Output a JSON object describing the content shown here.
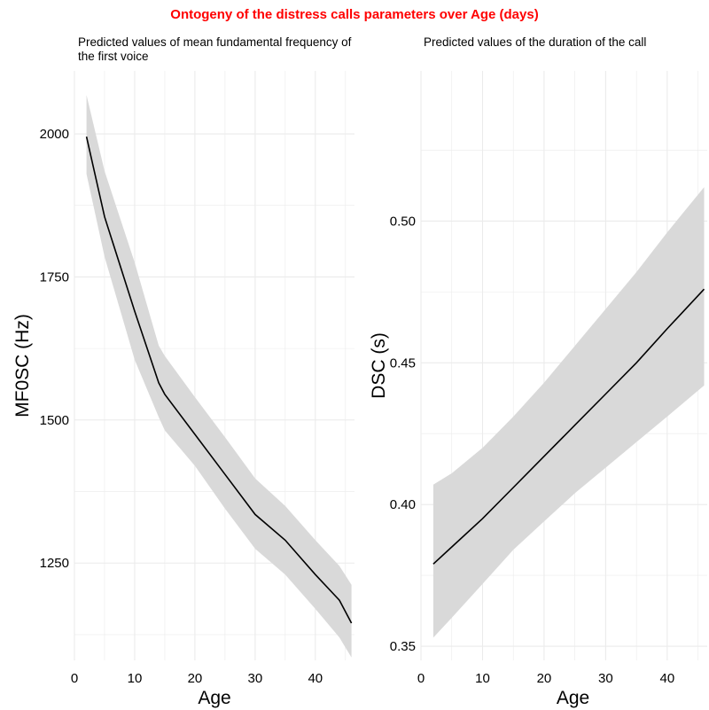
{
  "title": "Ontogeny of the distress calls parameters over Age (days)",
  "colors": {
    "title": "#ff0000",
    "line": "#000000",
    "ribbon": "#d9d9d9",
    "grid": "#ebebeb",
    "text": "#000000",
    "axis_text": "#333333"
  },
  "chart_data": [
    {
      "type": "line",
      "title": "Predicted values of mean fundamental frequency of the first voice",
      "xlabel": "Age",
      "ylabel": "MF0SC (Hz)",
      "xlim": [
        0,
        46.5
      ],
      "ylim": [
        1080,
        2110
      ],
      "xticks": [
        0,
        10,
        20,
        30,
        40
      ],
      "yticks": [
        1250,
        1500,
        1750,
        2000
      ],
      "grid": true,
      "series": [
        {
          "x": [
            2,
            5,
            10,
            14,
            15,
            20,
            25,
            30,
            35,
            40,
            44,
            46
          ],
          "y": [
            1995,
            1855,
            1690,
            1565,
            1545,
            1475,
            1405,
            1335,
            1290,
            1230,
            1185,
            1145
          ],
          "lower": [
            1930,
            1785,
            1605,
            1505,
            1482,
            1420,
            1345,
            1275,
            1230,
            1170,
            1120,
            1085
          ],
          "upper": [
            2068,
            1935,
            1775,
            1630,
            1612,
            1540,
            1470,
            1398,
            1350,
            1290,
            1245,
            1212
          ]
        }
      ]
    },
    {
      "type": "line",
      "title": "Predicted values of the duration of the call",
      "xlabel": "Age",
      "ylabel": "DSC (s)",
      "xlim": [
        0,
        46.5
      ],
      "ylim": [
        0.345,
        0.553
      ],
      "xticks": [
        0,
        10,
        20,
        30,
        40
      ],
      "yticks": [
        0.35,
        0.4,
        0.45,
        0.5
      ],
      "ytick_labels": [
        "0.35",
        "0.40",
        "0.45",
        "0.50"
      ],
      "grid": true,
      "series": [
        {
          "x": [
            2,
            5,
            10,
            15,
            20,
            25,
            30,
            35,
            40,
            46
          ],
          "y": [
            0.379,
            0.385,
            0.395,
            0.406,
            0.417,
            0.428,
            0.439,
            0.45,
            0.462,
            0.476
          ],
          "lower": [
            0.353,
            0.36,
            0.372,
            0.384,
            0.394,
            0.404,
            0.413,
            0.422,
            0.431,
            0.442
          ],
          "upper": [
            0.407,
            0.411,
            0.42,
            0.431,
            0.443,
            0.456,
            0.469,
            0.482,
            0.496,
            0.512
          ]
        }
      ]
    }
  ]
}
